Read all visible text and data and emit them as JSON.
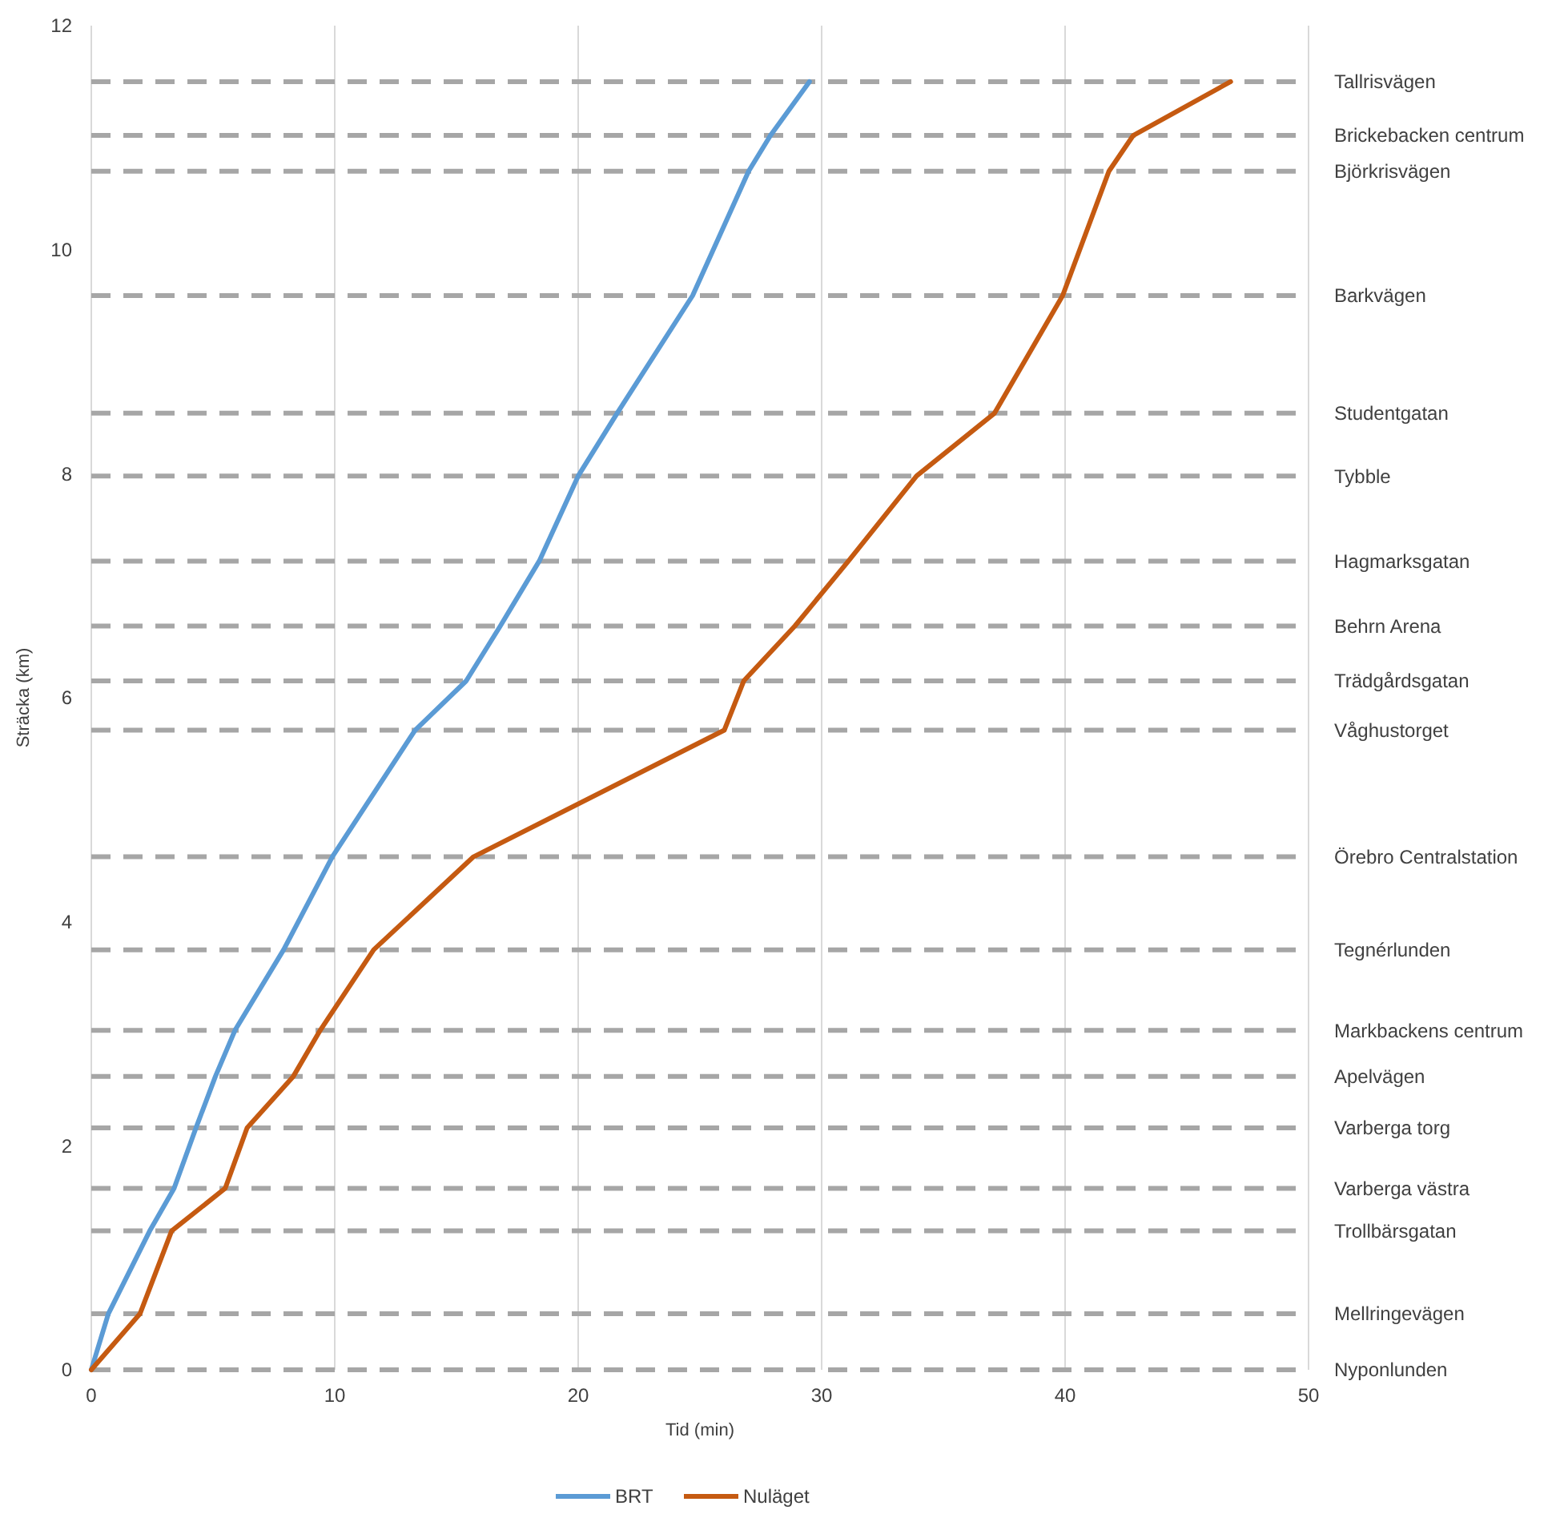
{
  "chart_data": {
    "type": "line",
    "xlabel": "Tid (min)",
    "ylabel": "Sträcka (km)",
    "xlim": [
      0,
      50
    ],
    "xticks": [
      0,
      10,
      20,
      30,
      40,
      50
    ],
    "ylim": [
      0,
      12
    ],
    "yticks": [
      0,
      2,
      4,
      6,
      8,
      10,
      12
    ],
    "grid": "x",
    "legend": "bottom",
    "marker": "none",
    "line_style": "solid",
    "series": [
      {
        "name": "BRT",
        "color": "#5b9bd5",
        "x": [
          0,
          0.7,
          2.4,
          3.4,
          4.3,
          5.1,
          5.9,
          7.9,
          9.9,
          13.3,
          15.4,
          16.8,
          18.4,
          20.0,
          21.6,
          24.7,
          27.0,
          27.9,
          29.5
        ],
        "values": [
          0,
          0.5,
          1.24,
          1.62,
          2.16,
          2.62,
          3.03,
          3.75,
          4.58,
          5.71,
          6.15,
          6.64,
          7.22,
          7.98,
          8.54,
          9.59,
          10.7,
          11.02,
          11.5
        ]
      },
      {
        "name": "Nuläget",
        "color": "#c55a11",
        "x": [
          0,
          2.0,
          3.3,
          5.5,
          6.4,
          8.3,
          9.4,
          11.6,
          15.7,
          26.0,
          26.8,
          28.9,
          31.1,
          33.9,
          37.1,
          39.9,
          41.8,
          42.8,
          46.8
        ],
        "values": [
          0,
          0.5,
          1.24,
          1.62,
          2.16,
          2.62,
          3.03,
          3.75,
          4.58,
          5.71,
          6.15,
          6.64,
          7.22,
          7.98,
          8.54,
          9.59,
          10.7,
          11.02,
          11.5
        ]
      }
    ],
    "ref_lines": [
      {
        "axis": "y",
        "value": 11.5,
        "label": "Tallrisvägen",
        "color": "#a6a6a6",
        "line_style": "dashed"
      },
      {
        "axis": "y",
        "value": 11.02,
        "label": "Brickebacken centrum",
        "color": "#a6a6a6",
        "line_style": "dashed"
      },
      {
        "axis": "y",
        "value": 10.7,
        "label": "Björkrisvägen",
        "color": "#a6a6a6",
        "line_style": "dashed"
      },
      {
        "axis": "y",
        "value": 9.59,
        "label": "Barkvägen",
        "color": "#a6a6a6",
        "line_style": "dashed"
      },
      {
        "axis": "y",
        "value": 8.54,
        "label": "Studentgatan",
        "color": "#a6a6a6",
        "line_style": "dashed"
      },
      {
        "axis": "y",
        "value": 7.98,
        "label": "Tybble",
        "color": "#a6a6a6",
        "line_style": "dashed"
      },
      {
        "axis": "y",
        "value": 7.22,
        "label": "Hagmarksgatan",
        "color": "#a6a6a6",
        "line_style": "dashed"
      },
      {
        "axis": "y",
        "value": 6.64,
        "label": "Behrn Arena",
        "color": "#a6a6a6",
        "line_style": "dashed"
      },
      {
        "axis": "y",
        "value": 6.15,
        "label": "Trädgårdsgatan",
        "color": "#a6a6a6",
        "line_style": "dashed"
      },
      {
        "axis": "y",
        "value": 5.71,
        "label": "Våghustorget",
        "color": "#a6a6a6",
        "line_style": "dashed"
      },
      {
        "axis": "y",
        "value": 4.58,
        "label": "Örebro Centralstation",
        "color": "#a6a6a6",
        "line_style": "dashed"
      },
      {
        "axis": "y",
        "value": 3.75,
        "label": "Tegnérlunden",
        "color": "#a6a6a6",
        "line_style": "dashed"
      },
      {
        "axis": "y",
        "value": 3.03,
        "label": "Markbackens centrum",
        "color": "#a6a6a6",
        "line_style": "dashed"
      },
      {
        "axis": "y",
        "value": 2.62,
        "label": "Apelvägen",
        "color": "#a6a6a6",
        "line_style": "dashed"
      },
      {
        "axis": "y",
        "value": 2.16,
        "label": "Varberga torg",
        "color": "#a6a6a6",
        "line_style": "dashed"
      },
      {
        "axis": "y",
        "value": 1.62,
        "label": "Varberga västra",
        "color": "#a6a6a6",
        "line_style": "dashed"
      },
      {
        "axis": "y",
        "value": 1.24,
        "label": "Trollbärsgatan",
        "color": "#a6a6a6",
        "line_style": "dashed"
      },
      {
        "axis": "y",
        "value": 0.5,
        "label": "Mellringevägen",
        "color": "#a6a6a6",
        "line_style": "dashed"
      },
      {
        "axis": "y",
        "value": 0,
        "label": "Nyponlunden",
        "color": "#a6a6a6",
        "line_style": "dashed"
      }
    ]
  }
}
